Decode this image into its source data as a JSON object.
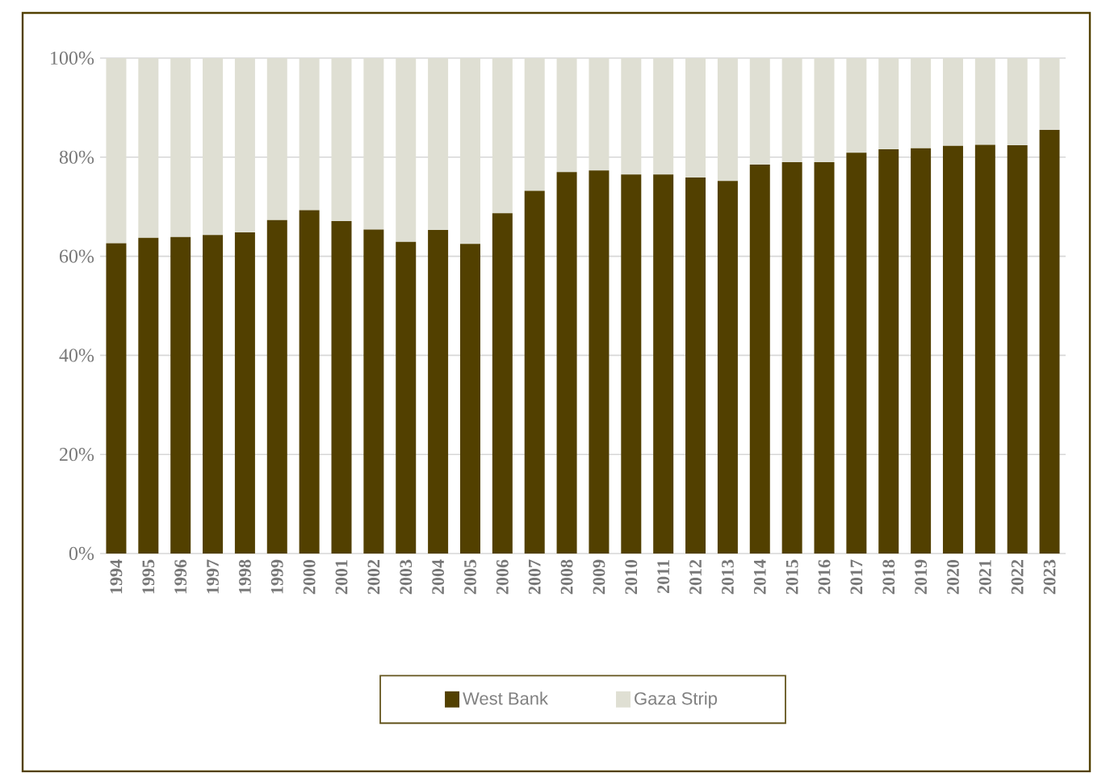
{
  "chart_data": {
    "type": "bar",
    "stacked": true,
    "categories": [
      "1994",
      "1995",
      "1996",
      "1997",
      "1998",
      "1999",
      "2000",
      "2001",
      "2002",
      "2003",
      "2004",
      "2005",
      "2006",
      "2007",
      "2008",
      "2009",
      "2010",
      "2011",
      "2012",
      "2013",
      "2014",
      "2015",
      "2016",
      "2017",
      "2018",
      "2019",
      "2020",
      "2021",
      "2022",
      "2023"
    ],
    "series": [
      {
        "name": "West Bank",
        "color": "#524000",
        "values": [
          62.6,
          63.7,
          63.9,
          64.3,
          64.8,
          67.3,
          69.3,
          67.1,
          65.4,
          62.9,
          65.3,
          62.5,
          68.7,
          73.2,
          77.0,
          77.3,
          76.5,
          76.5,
          75.9,
          75.2,
          78.5,
          79.0,
          79.0,
          80.9,
          81.6,
          81.8,
          82.3,
          82.5,
          82.4,
          85.5
        ]
      },
      {
        "name": "Gaza Strip",
        "color": "#dfdfd3",
        "values": [
          37.4,
          36.3,
          36.1,
          35.7,
          35.2,
          32.7,
          30.7,
          32.9,
          34.6,
          37.1,
          34.7,
          37.5,
          31.3,
          26.8,
          23.0,
          22.7,
          23.5,
          23.5,
          24.1,
          24.8,
          21.5,
          21.0,
          21.0,
          19.1,
          18.4,
          18.2,
          17.7,
          17.5,
          17.6,
          14.5
        ]
      }
    ],
    "ylim": [
      0,
      100
    ],
    "yticks": [
      {
        "value": 0,
        "label": "0%"
      },
      {
        "value": 20,
        "label": "20%"
      },
      {
        "value": 40,
        "label": "40%"
      },
      {
        "value": 60,
        "label": "60%"
      },
      {
        "value": 80,
        "label": "80%"
      },
      {
        "value": 100,
        "label": "100%"
      }
    ],
    "grid": "y",
    "legend": "bottom"
  }
}
